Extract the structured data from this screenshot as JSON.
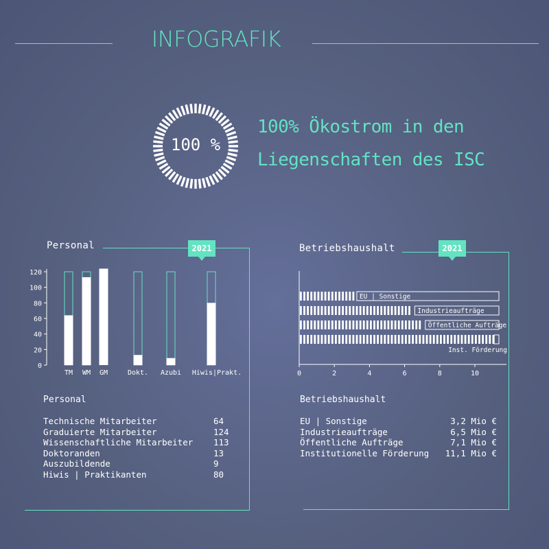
{
  "header": {
    "title": "INFOGRAFIK"
  },
  "eco": {
    "ring_label": "100 %",
    "line1": "100% Ökostrom in den",
    "line2": "Liegenschaften des ISC"
  },
  "personal_panel": {
    "label": "Personal",
    "year": "2021",
    "stats_title": "Personal",
    "rows": [
      {
        "name": "Technische Mitarbeiter",
        "value": "64"
      },
      {
        "name": "Graduierte Mitarbeiter",
        "value": "124"
      },
      {
        "name": "Wissenschaftliche Mitarbeiter",
        "value": "113"
      },
      {
        "name": "Doktoranden",
        "value": "13"
      },
      {
        "name": "Auszubildende",
        "value": "9"
      },
      {
        "name": "Hiwis | Praktikanten",
        "value": "80"
      }
    ]
  },
  "budget_panel": {
    "label": "Betriebshaushalt",
    "year": "2021",
    "stats_title": "Betriebshaushalt",
    "rows": [
      {
        "name": "EU | Sonstige",
        "value": "3,2 Mio €"
      },
      {
        "name": "Industrieaufträge",
        "value": "6,5 Mio €"
      },
      {
        "name": "Öffentliche Aufträge",
        "value": "7,1 Mio €"
      },
      {
        "name": "Institutionelle Förderung",
        "value": "11,1 Mio €"
      }
    ]
  },
  "colors": {
    "accent": "#63e3c2",
    "bar": "#ffffff",
    "background": "#5a6486"
  },
  "chart_data": [
    {
      "type": "bar",
      "title": "Personal",
      "categories": [
        "TM",
        "WM",
        "GM",
        "Dokt.",
        "Azubi",
        "Hiwis|Prakt."
      ],
      "values": [
        64,
        113,
        124,
        13,
        9,
        80
      ],
      "capacity": 120,
      "yticks": [
        0,
        20,
        40,
        60,
        80,
        100,
        120
      ],
      "ylim": [
        0,
        120
      ],
      "grid": false
    },
    {
      "type": "bar",
      "orientation": "horizontal",
      "title": "Betriebshaushalt",
      "categories": [
        "EU | Sonstige",
        "Industrieaufträge",
        "Öffentliche Aufträge",
        "Inst. Förderung"
      ],
      "values": [
        3.2,
        6.5,
        7.1,
        11.1
      ],
      "xticks": [
        0,
        2,
        4,
        6,
        8,
        10
      ],
      "xlim": [
        0,
        11.8
      ],
      "grid": false
    }
  ]
}
